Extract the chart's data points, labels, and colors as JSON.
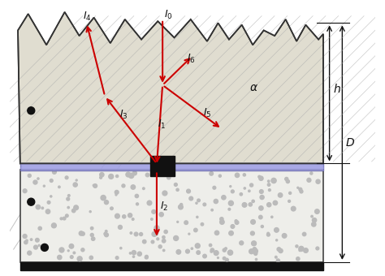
{
  "bg_color": "#f5f5f0",
  "top_layer_color": "#d8d8c8",
  "bottom_layer_color": "#e8e8e0",
  "fiber_band_color": "#8888cc",
  "black_square_color": "#111111",
  "arrow_color": "#cc0000",
  "dim_color": "#111111",
  "outline_color": "#222222",
  "dot_color": "#111111",
  "hatch_color": "#888888",
  "figsize": [
    4.74,
    3.4
  ],
  "dpi": 100
}
